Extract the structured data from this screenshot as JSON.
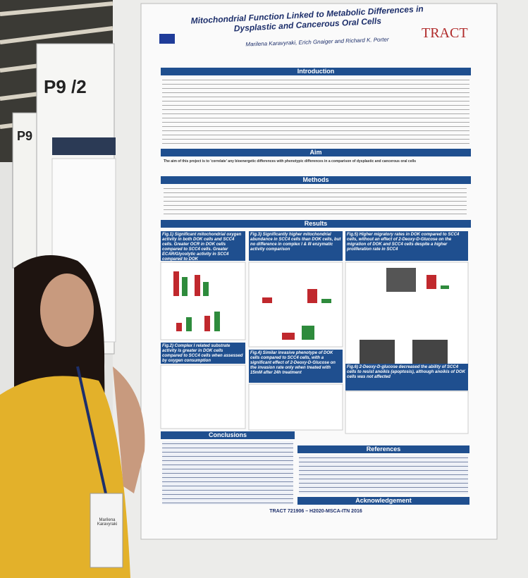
{
  "signs": {
    "board_main": "P9 /2",
    "board_back": "P9"
  },
  "poster": {
    "title": "Mitochondrial Function Linked to Metabolic Differences in Dysplastic and Cancerous Oral Cells",
    "authors": "Marilena Karavyraki, Erich Gnaiger and Richard K. Porter",
    "logo": "TRACT",
    "sections": {
      "introduction": "Introduction",
      "aim": "Aim",
      "methods": "Methods",
      "results": "Results",
      "conclusions": "Conclusions",
      "references": "References",
      "acknowledgement": "Acknowledgement"
    },
    "aim_text": "The aim of this project is to 'correlate' any bioenergetic differences with phenotypic differences in a comparison of dysplastic and cancerous oral cells",
    "figures": [
      "Fig.1) Significant mitochondrial oxygen activity in both DOK cells and SCC4 cells. Greater OCR in DOK cells compared to SCC4 cells. Greater ECAR/Glycolytic activity in SCC4 compared to DOK",
      "Fig.2) Complex I related substrate activity is greater in DOK cells compared to SCC4 cells when assessed by oxygen consumption",
      "Fig.3) Significantly higher mitochondrial abundance in SCC4 cells than DOK cells, but no difference in complex I & III enzymatic activity comparison",
      "Fig.4) Similar invasive phenotype of DOK cells compared to SCC4 cells, with a significant effect of 2-Deoxy-D-Glucose on the invasion rate only when treated with 15mM after 24h treatment",
      "Fig.5) Higher migratory rates in DOK compared to SCC4 cells, without an effect of 2-Deoxy-D-Glucose on the migration of DOK and SCC4 cells despite a higher proliferation rate in SCC4",
      "Fig.6) 2-Deoxy-D-glucose decreased the ability of SCC4 cells to resist anoikis (apoptosis), although anoikis of DOK cells was not affected"
    ],
    "footer": "TRACT 721906 – H2020-MSCA-ITN 2016"
  },
  "badge": {
    "name": "Marilena Karavyraki"
  }
}
